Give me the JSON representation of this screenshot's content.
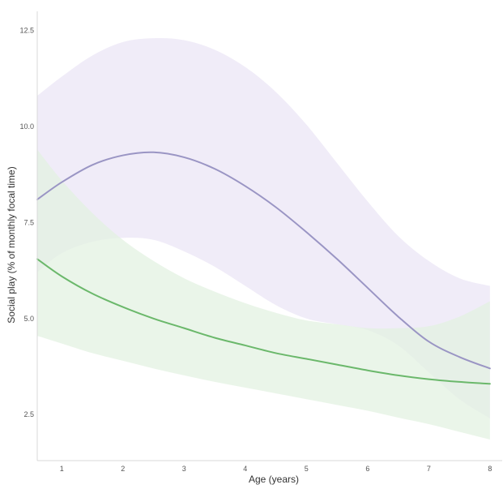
{
  "chart_data": {
    "type": "line",
    "title": "",
    "xlabel": "Age (years)",
    "ylabel": "Social play (% of monthly focal time)",
    "xlim": [
      0.6,
      8.2
    ],
    "ylim": [
      1.3,
      13.0
    ],
    "x_ticks": [
      1,
      2,
      3,
      4,
      5,
      6,
      7,
      8
    ],
    "x_tick_labels": [
      "1",
      "2",
      "3",
      "4",
      "5",
      "6",
      "7",
      "8"
    ],
    "y_ticks": [
      2.5,
      5.0,
      7.5,
      10.0,
      12.5
    ],
    "y_tick_labels": [
      "2.5",
      "5.0",
      "7.5",
      "10.0",
      "12.5"
    ],
    "grid": false,
    "legend": "none",
    "series": [
      {
        "color": "#9a95c4",
        "band_color": "#ebe6f5",
        "x": [
          0.6,
          1.0,
          1.5,
          2.0,
          2.5,
          3.0,
          3.5,
          4.0,
          4.5,
          5.0,
          5.5,
          6.0,
          6.5,
          7.0,
          7.5,
          8.0
        ],
        "y": [
          8.1,
          8.55,
          9.0,
          9.25,
          9.33,
          9.2,
          8.9,
          8.45,
          7.9,
          7.25,
          6.55,
          5.8,
          5.05,
          4.4,
          4.0,
          3.7
        ],
        "lower": [
          6.2,
          6.7,
          7.0,
          7.1,
          7.05,
          6.75,
          6.35,
          5.85,
          5.35,
          5.0,
          4.85,
          4.7,
          4.3,
          3.6,
          2.9,
          2.4
        ],
        "upper": [
          10.8,
          11.3,
          11.85,
          12.2,
          12.3,
          12.25,
          12.0,
          11.55,
          10.9,
          10.05,
          9.05,
          8.05,
          7.15,
          6.5,
          6.05,
          5.85
        ]
      },
      {
        "color": "#6bb86b",
        "band_color": "#e3f1e1",
        "x": [
          0.6,
          1.0,
          1.5,
          2.0,
          2.5,
          3.0,
          3.5,
          4.0,
          4.5,
          5.0,
          5.5,
          6.0,
          6.5,
          7.0,
          7.5,
          8.0
        ],
        "y": [
          6.55,
          6.1,
          5.65,
          5.3,
          5.0,
          4.75,
          4.5,
          4.3,
          4.1,
          3.95,
          3.8,
          3.65,
          3.52,
          3.42,
          3.35,
          3.3
        ],
        "lower": [
          4.55,
          4.35,
          4.1,
          3.9,
          3.7,
          3.52,
          3.35,
          3.2,
          3.05,
          2.9,
          2.75,
          2.6,
          2.42,
          2.25,
          2.05,
          1.85
        ],
        "upper": [
          9.4,
          8.6,
          7.75,
          7.05,
          6.5,
          6.05,
          5.7,
          5.4,
          5.15,
          4.95,
          4.85,
          4.75,
          4.75,
          4.8,
          5.05,
          5.45
        ]
      }
    ]
  }
}
